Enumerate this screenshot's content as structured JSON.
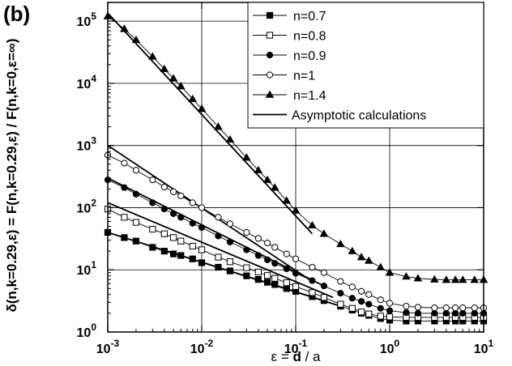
{
  "panel_label": "(b)",
  "chart_data": {
    "type": "line",
    "xscale": "log",
    "yscale": "log",
    "xlim": [
      0.001,
      10
    ],
    "ylim": [
      1,
      200000
    ],
    "grid": "major decades (x: 1e-2, 1e-1, 1e0; y: 1e1..1e5)",
    "legend_position": "top-right",
    "xlabel_parts": [
      "ε = ",
      "d",
      " / a"
    ],
    "ylabel": "δ(n,k=0.29,ε) = F(n,k=0.29,ε) / F(n,k=0,ε=∞)",
    "x_ticks": [
      {
        "value": 0.001,
        "base": "10",
        "exp": "-3"
      },
      {
        "value": 0.01,
        "base": "10",
        "exp": "-2"
      },
      {
        "value": 0.1,
        "base": "10",
        "exp": "-1"
      },
      {
        "value": 1,
        "base": "10",
        "exp": "0"
      },
      {
        "value": 10,
        "base": "10",
        "exp": "1"
      }
    ],
    "y_ticks": [
      {
        "value": 1,
        "base": "10",
        "exp": "0"
      },
      {
        "value": 10,
        "base": "10",
        "exp": "1"
      },
      {
        "value": 100,
        "base": "10",
        "exp": "2"
      },
      {
        "value": 1000,
        "base": "10",
        "exp": "3"
      },
      {
        "value": 10000,
        "base": "10",
        "exp": "4"
      },
      {
        "value": 100000,
        "base": "10",
        "exp": "5"
      }
    ],
    "series": [
      {
        "name": "n=0.7",
        "marker": "filled-square",
        "x": [
          0.001,
          0.0015,
          0.002,
          0.003,
          0.004,
          0.005,
          0.006,
          0.008,
          0.01,
          0.015,
          0.02,
          0.03,
          0.04,
          0.05,
          0.06,
          0.08,
          0.1,
          0.15,
          0.2,
          0.3,
          0.4,
          0.5,
          0.6,
          0.8,
          1,
          1.5,
          2,
          3,
          4,
          5,
          6,
          8,
          10
        ],
        "y": [
          40,
          33,
          29,
          23,
          20,
          18,
          17,
          15,
          13,
          11,
          9.6,
          8,
          7,
          6.3,
          5.8,
          5,
          4.5,
          3.7,
          3.2,
          2.6,
          2.25,
          2,
          1.85,
          1.65,
          1.55,
          1.5,
          1.5,
          1.5,
          1.5,
          1.5,
          1.5,
          1.5,
          1.5
        ]
      },
      {
        "name": "n=0.8",
        "marker": "open-square",
        "x": [
          0.001,
          0.0015,
          0.002,
          0.003,
          0.004,
          0.005,
          0.006,
          0.008,
          0.01,
          0.015,
          0.02,
          0.03,
          0.04,
          0.05,
          0.06,
          0.08,
          0.1,
          0.15,
          0.2,
          0.3,
          0.4,
          0.5,
          0.6,
          0.8,
          1,
          1.5,
          2,
          3,
          4,
          5,
          6,
          8,
          10
        ],
        "y": [
          95,
          70,
          58,
          45,
          38,
          33,
          29,
          24,
          21,
          16,
          13.5,
          10.8,
          9.2,
          8.1,
          7.3,
          6.2,
          5.4,
          4.3,
          3.6,
          2.8,
          2.4,
          2.1,
          1.95,
          1.8,
          1.75,
          1.72,
          1.72,
          1.72,
          1.72,
          1.72,
          1.72,
          1.72,
          1.72
        ]
      },
      {
        "name": "n=0.9",
        "marker": "filled-circle",
        "x": [
          0.001,
          0.0015,
          0.002,
          0.003,
          0.004,
          0.005,
          0.006,
          0.008,
          0.01,
          0.015,
          0.02,
          0.03,
          0.04,
          0.05,
          0.06,
          0.08,
          0.1,
          0.15,
          0.2,
          0.3,
          0.4,
          0.5,
          0.6,
          0.8,
          1,
          1.5,
          2,
          3,
          4,
          5,
          6,
          8,
          10
        ],
        "y": [
          280,
          210,
          165,
          120,
          95,
          80,
          70,
          56,
          48,
          35,
          28,
          21,
          17,
          14.5,
          12.7,
          10.4,
          8.8,
          6.7,
          5.5,
          4.2,
          3.5,
          3.1,
          2.8,
          2.4,
          2.2,
          2.05,
          2,
          2,
          2,
          2,
          2,
          2,
          2
        ]
      },
      {
        "name": "n=1",
        "marker": "open-circle",
        "x": [
          0.001,
          0.0015,
          0.002,
          0.003,
          0.004,
          0.005,
          0.006,
          0.008,
          0.01,
          0.015,
          0.02,
          0.03,
          0.04,
          0.05,
          0.06,
          0.08,
          0.1,
          0.15,
          0.2,
          0.3,
          0.4,
          0.5,
          0.6,
          0.8,
          1,
          1.5,
          2,
          3,
          4,
          5,
          6,
          8,
          10
        ],
        "y": [
          700,
          520,
          400,
          280,
          215,
          180,
          155,
          120,
          100,
          70,
          55,
          40,
          32,
          27,
          23,
          18,
          15,
          11,
          9,
          6.5,
          5.3,
          4.5,
          4,
          3.3,
          2.9,
          2.6,
          2.5,
          2.45,
          2.45,
          2.45,
          2.45,
          2.45,
          2.45
        ]
      },
      {
        "name": "n=1.4",
        "marker": "filled-triangle",
        "x": [
          0.001,
          0.0015,
          0.002,
          0.003,
          0.004,
          0.005,
          0.006,
          0.008,
          0.01,
          0.015,
          0.02,
          0.03,
          0.04,
          0.05,
          0.06,
          0.08,
          0.1,
          0.15,
          0.2,
          0.3,
          0.4,
          0.5,
          0.6,
          0.8,
          1,
          1.5,
          2,
          3,
          4,
          5,
          6,
          8,
          10
        ],
        "y": [
          120000,
          75000,
          50000,
          27000,
          17000,
          12000,
          9000,
          5600,
          3900,
          2000,
          1250,
          640,
          400,
          280,
          210,
          130,
          90,
          52,
          38,
          26,
          20,
          16,
          14,
          11,
          9,
          7.8,
          7.3,
          7,
          6.9,
          6.9,
          6.9,
          6.9,
          6.9
        ]
      }
    ],
    "asymptotic": {
      "name": "Asymptotic calculations",
      "lines": [
        {
          "x": [
            0.001,
            0.15
          ],
          "y": [
            1000,
            6.5
          ]
        },
        {
          "x": [
            0.001,
            0.2
          ],
          "y": [
            300,
            5.5
          ]
        },
        {
          "x": [
            0.001,
            0.25
          ],
          "y": [
            120,
            3.6
          ]
        },
        {
          "x": [
            0.001,
            0.3
          ],
          "y": [
            40,
            2.6
          ]
        },
        {
          "x": [
            0.001,
            0.15
          ],
          "y": [
            135000,
            38
          ]
        }
      ]
    }
  }
}
